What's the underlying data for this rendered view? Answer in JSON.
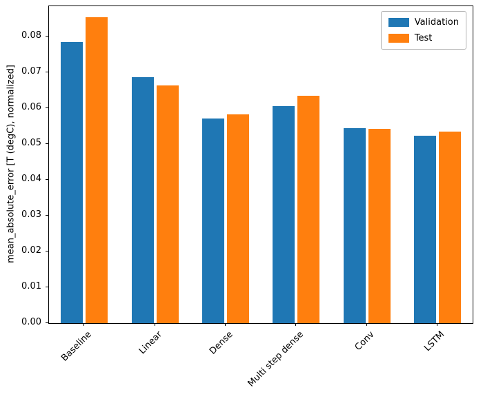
{
  "chart_data": {
    "type": "bar",
    "categories": [
      "Baseline",
      "Linear",
      "Dense",
      "Multi step dense",
      "Conv",
      "LSTM"
    ],
    "series": [
      {
        "name": "Validation",
        "color": "#1f77b4",
        "values": [
          0.0785,
          0.0686,
          0.0572,
          0.0607,
          0.0545,
          0.0524
        ]
      },
      {
        "name": "Test",
        "color": "#ff7f0e",
        "values": [
          0.0855,
          0.0663,
          0.0583,
          0.0634,
          0.0543,
          0.0534
        ]
      }
    ],
    "title": "",
    "xlabel": "",
    "ylabel": "mean_absolute_error [T (degC), normalized]",
    "ylim": [
      0,
      0.0885
    ],
    "yticks": [
      0.0,
      0.01,
      0.02,
      0.03,
      0.04,
      0.05,
      0.06,
      0.07,
      0.08
    ],
    "ytick_format_decimals": 2,
    "xtick_rotation": 45,
    "grid": false,
    "legend": {
      "position": "upper right",
      "entries": [
        "Validation",
        "Test"
      ]
    }
  }
}
